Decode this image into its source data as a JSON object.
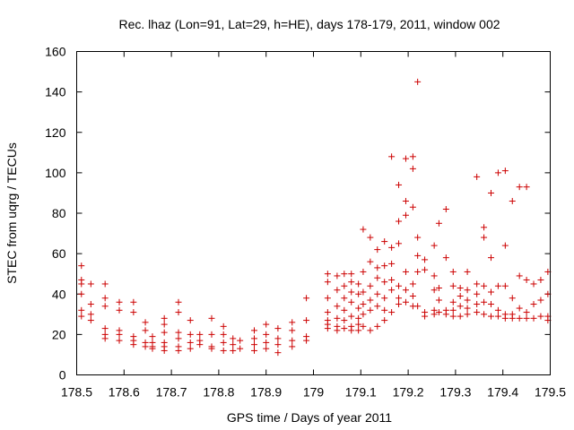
{
  "chart_data": {
    "type": "scatter",
    "title": "Rec. lhaz (Lon=91, Lat=29, h=HE), days 178-179, 2011, window 002",
    "xlabel": "GPS time / Days of year 2011",
    "ylabel": "STEC from uqrg / TECUs",
    "xlim": [
      178.5,
      179.5
    ],
    "ylim": [
      0,
      160
    ],
    "xticks": [
      "178.5",
      "178.6",
      "178.7",
      "178.8",
      "178.9",
      "179",
      "179.1",
      "179.2",
      "179.3",
      "179.4",
      "179.5"
    ],
    "yticks": [
      "0",
      "20",
      "40",
      "60",
      "80",
      "100",
      "120",
      "140",
      "160"
    ],
    "grid": false,
    "marker": "+",
    "color": "#cc0000",
    "series": [
      {
        "name": "STEC",
        "points": [
          [
            178.51,
            54
          ],
          [
            178.51,
            47
          ],
          [
            178.51,
            45
          ],
          [
            178.51,
            40
          ],
          [
            178.51,
            32
          ],
          [
            178.51,
            29
          ],
          [
            178.53,
            45
          ],
          [
            178.53,
            35
          ],
          [
            178.53,
            30
          ],
          [
            178.53,
            27
          ],
          [
            178.56,
            45
          ],
          [
            178.56,
            38
          ],
          [
            178.56,
            34
          ],
          [
            178.56,
            23
          ],
          [
            178.56,
            20
          ],
          [
            178.56,
            18
          ],
          [
            178.59,
            36
          ],
          [
            178.59,
            32
          ],
          [
            178.59,
            22
          ],
          [
            178.59,
            20
          ],
          [
            178.59,
            17
          ],
          [
            178.62,
            36
          ],
          [
            178.62,
            31
          ],
          [
            178.62,
            19
          ],
          [
            178.62,
            17
          ],
          [
            178.62,
            15
          ],
          [
            178.645,
            26
          ],
          [
            178.645,
            22
          ],
          [
            178.645,
            16
          ],
          [
            178.645,
            14
          ],
          [
            178.66,
            19
          ],
          [
            178.66,
            16
          ],
          [
            178.66,
            14
          ],
          [
            178.66,
            13
          ],
          [
            178.685,
            28
          ],
          [
            178.685,
            25
          ],
          [
            178.685,
            21
          ],
          [
            178.685,
            16
          ],
          [
            178.685,
            14
          ],
          [
            178.685,
            12
          ],
          [
            178.715,
            36
          ],
          [
            178.715,
            31
          ],
          [
            178.715,
            21
          ],
          [
            178.715,
            18
          ],
          [
            178.715,
            14
          ],
          [
            178.715,
            12
          ],
          [
            178.74,
            27
          ],
          [
            178.74,
            20
          ],
          [
            178.74,
            16
          ],
          [
            178.74,
            13
          ],
          [
            178.76,
            20
          ],
          [
            178.76,
            17
          ],
          [
            178.76,
            15
          ],
          [
            178.785,
            28
          ],
          [
            178.785,
            20
          ],
          [
            178.785,
            14
          ],
          [
            178.785,
            13
          ],
          [
            178.81,
            24
          ],
          [
            178.81,
            20
          ],
          [
            178.81,
            16
          ],
          [
            178.81,
            12
          ],
          [
            178.83,
            18
          ],
          [
            178.83,
            15
          ],
          [
            178.83,
            12
          ],
          [
            178.845,
            17
          ],
          [
            178.845,
            13
          ],
          [
            178.875,
            22
          ],
          [
            178.875,
            18
          ],
          [
            178.875,
            15
          ],
          [
            178.875,
            12
          ],
          [
            178.9,
            25
          ],
          [
            178.9,
            20
          ],
          [
            178.9,
            16
          ],
          [
            178.9,
            13
          ],
          [
            178.925,
            23
          ],
          [
            178.925,
            18
          ],
          [
            178.925,
            15
          ],
          [
            178.925,
            11
          ],
          [
            178.955,
            26
          ],
          [
            178.955,
            22
          ],
          [
            178.955,
            17
          ],
          [
            178.955,
            14
          ],
          [
            178.985,
            38
          ],
          [
            178.985,
            27
          ],
          [
            178.985,
            19
          ],
          [
            178.985,
            17
          ],
          [
            179.03,
            50
          ],
          [
            179.03,
            46
          ],
          [
            179.03,
            38
          ],
          [
            179.03,
            31
          ],
          [
            179.03,
            27
          ],
          [
            179.03,
            25
          ],
          [
            179.03,
            23
          ],
          [
            179.05,
            49
          ],
          [
            179.05,
            42
          ],
          [
            179.05,
            34
          ],
          [
            179.05,
            28
          ],
          [
            179.05,
            24
          ],
          [
            179.05,
            22
          ],
          [
            179.065,
            50
          ],
          [
            179.065,
            44
          ],
          [
            179.065,
            38
          ],
          [
            179.065,
            32
          ],
          [
            179.065,
            27
          ],
          [
            179.065,
            23
          ],
          [
            179.08,
            50
          ],
          [
            179.08,
            46
          ],
          [
            179.08,
            41
          ],
          [
            179.08,
            36
          ],
          [
            179.08,
            29
          ],
          [
            179.08,
            24
          ],
          [
            179.08,
            22
          ],
          [
            179.095,
            45
          ],
          [
            179.095,
            40
          ],
          [
            179.095,
            33
          ],
          [
            179.095,
            28
          ],
          [
            179.095,
            25
          ],
          [
            179.095,
            22
          ],
          [
            179.105,
            72
          ],
          [
            179.105,
            51
          ],
          [
            179.105,
            41
          ],
          [
            179.105,
            35
          ],
          [
            179.105,
            30
          ],
          [
            179.105,
            24
          ],
          [
            179.12,
            68
          ],
          [
            179.12,
            56
          ],
          [
            179.12,
            44
          ],
          [
            179.12,
            37
          ],
          [
            179.12,
            32
          ],
          [
            179.12,
            22
          ],
          [
            179.135,
            62
          ],
          [
            179.135,
            53
          ],
          [
            179.135,
            48
          ],
          [
            179.135,
            40
          ],
          [
            179.135,
            34
          ],
          [
            179.135,
            24
          ],
          [
            179.15,
            66
          ],
          [
            179.15,
            54
          ],
          [
            179.15,
            46
          ],
          [
            179.15,
            38
          ],
          [
            179.15,
            32
          ],
          [
            179.15,
            27
          ],
          [
            179.165,
            108
          ],
          [
            179.165,
            63
          ],
          [
            179.165,
            55
          ],
          [
            179.165,
            47
          ],
          [
            179.165,
            42
          ],
          [
            179.165,
            31
          ],
          [
            179.18,
            94
          ],
          [
            179.18,
            76
          ],
          [
            179.18,
            65
          ],
          [
            179.18,
            44
          ],
          [
            179.18,
            38
          ],
          [
            179.18,
            35
          ],
          [
            179.195,
            107
          ],
          [
            179.195,
            86
          ],
          [
            179.195,
            79
          ],
          [
            179.195,
            51
          ],
          [
            179.195,
            42
          ],
          [
            179.195,
            36
          ],
          [
            179.21,
            108
          ],
          [
            179.21,
            102
          ],
          [
            179.21,
            83
          ],
          [
            179.21,
            45
          ],
          [
            179.21,
            39
          ],
          [
            179.21,
            34
          ],
          [
            179.22,
            145
          ],
          [
            179.22,
            68
          ],
          [
            179.22,
            59
          ],
          [
            179.22,
            51
          ],
          [
            179.22,
            34
          ],
          [
            179.235,
            57
          ],
          [
            179.235,
            52
          ],
          [
            179.235,
            31
          ],
          [
            179.235,
            29
          ],
          [
            179.255,
            64
          ],
          [
            179.255,
            49
          ],
          [
            179.255,
            42
          ],
          [
            179.255,
            32
          ],
          [
            179.255,
            30
          ],
          [
            179.265,
            75
          ],
          [
            179.265,
            43
          ],
          [
            179.265,
            37
          ],
          [
            179.265,
            31
          ],
          [
            179.28,
            82
          ],
          [
            179.28,
            58
          ],
          [
            179.28,
            32
          ],
          [
            179.28,
            30
          ],
          [
            179.295,
            51
          ],
          [
            179.295,
            44
          ],
          [
            179.295,
            36
          ],
          [
            179.295,
            32
          ],
          [
            179.295,
            29
          ],
          [
            179.31,
            43
          ],
          [
            179.31,
            39
          ],
          [
            179.31,
            34
          ],
          [
            179.31,
            29
          ],
          [
            179.325,
            51
          ],
          [
            179.325,
            42
          ],
          [
            179.325,
            37
          ],
          [
            179.325,
            33
          ],
          [
            179.325,
            30
          ],
          [
            179.345,
            98
          ],
          [
            179.345,
            45
          ],
          [
            179.345,
            40
          ],
          [
            179.345,
            35
          ],
          [
            179.345,
            31
          ],
          [
            179.36,
            73
          ],
          [
            179.36,
            68
          ],
          [
            179.36,
            44
          ],
          [
            179.36,
            36
          ],
          [
            179.36,
            30
          ],
          [
            179.375,
            90
          ],
          [
            179.375,
            58
          ],
          [
            179.375,
            41
          ],
          [
            179.375,
            35
          ],
          [
            179.375,
            29
          ],
          [
            179.39,
            100
          ],
          [
            179.39,
            44
          ],
          [
            179.39,
            32
          ],
          [
            179.39,
            29
          ],
          [
            179.405,
            101
          ],
          [
            179.405,
            64
          ],
          [
            179.405,
            44
          ],
          [
            179.405,
            30
          ],
          [
            179.405,
            28
          ],
          [
            179.42,
            86
          ],
          [
            179.42,
            38
          ],
          [
            179.42,
            30
          ],
          [
            179.42,
            28
          ],
          [
            179.435,
            93
          ],
          [
            179.435,
            49
          ],
          [
            179.435,
            33
          ],
          [
            179.435,
            28
          ],
          [
            179.45,
            93
          ],
          [
            179.45,
            47
          ],
          [
            179.45,
            31
          ],
          [
            179.45,
            28
          ],
          [
            179.465,
            45
          ],
          [
            179.465,
            35
          ],
          [
            179.465,
            28
          ],
          [
            179.48,
            47
          ],
          [
            179.48,
            37
          ],
          [
            179.48,
            29
          ],
          [
            179.495,
            51
          ],
          [
            179.495,
            40
          ],
          [
            179.495,
            29
          ],
          [
            179.495,
            27
          ]
        ]
      }
    ]
  }
}
